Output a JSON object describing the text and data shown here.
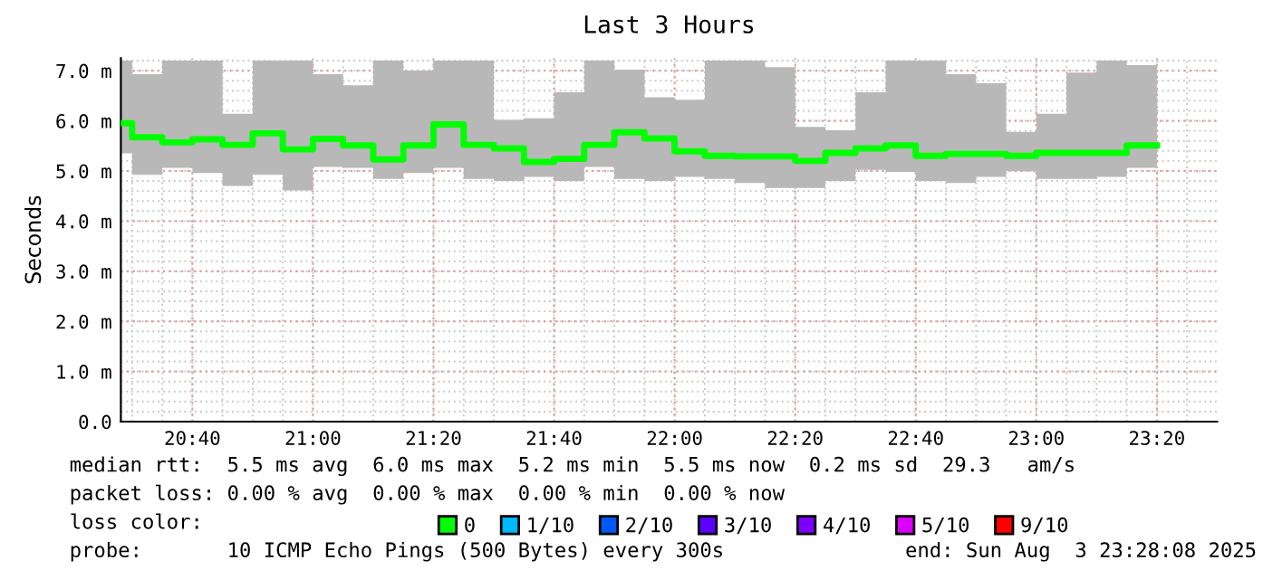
{
  "chart_data": {
    "type": "step",
    "title": "Last 3 Hours",
    "ylabel": "Seconds",
    "x": [
      "2025-08-03T20:30",
      "2025-08-03T20:35",
      "2025-08-03T20:40",
      "2025-08-03T20:45",
      "2025-08-03T20:50",
      "2025-08-03T20:55",
      "2025-08-03T21:00",
      "2025-08-03T21:05",
      "2025-08-03T21:10",
      "2025-08-03T21:15",
      "2025-08-03T21:20",
      "2025-08-03T21:25",
      "2025-08-03T21:30",
      "2025-08-03T21:35",
      "2025-08-03T21:40",
      "2025-08-03T21:45",
      "2025-08-03T21:50",
      "2025-08-03T21:55",
      "2025-08-03T22:00",
      "2025-08-03T22:05",
      "2025-08-03T22:10",
      "2025-08-03T22:15",
      "2025-08-03T22:20",
      "2025-08-03T22:25",
      "2025-08-03T22:30",
      "2025-08-03T22:35",
      "2025-08-03T22:40",
      "2025-08-03T22:45",
      "2025-08-03T22:50",
      "2025-08-03T22:55",
      "2025-08-03T23:00",
      "2025-08-03T23:05",
      "2025-08-03T23:10",
      "2025-08-03T23:15",
      "2025-08-03T23:20"
    ],
    "series": [
      {
        "name": "0",
        "color": "#00ff00",
        "values": [
          5.95,
          5.67,
          5.57,
          5.63,
          5.52,
          5.75,
          5.43,
          5.64,
          5.51,
          5.23,
          5.51,
          5.93,
          5.52,
          5.45,
          5.18,
          5.24,
          5.52,
          5.77,
          5.65,
          5.39,
          5.3,
          5.29,
          5.29,
          5.2,
          5.36,
          5.45,
          5.51,
          5.3,
          5.34,
          5.34,
          5.3,
          5.36,
          5.36,
          5.36,
          5.51
        ],
        "lower": [
          5.35,
          4.92,
          5.06,
          4.96,
          4.7,
          4.92,
          4.61,
          5.08,
          5.06,
          4.84,
          4.96,
          5.06,
          4.84,
          4.8,
          4.88,
          4.8,
          5.08,
          4.84,
          4.8,
          4.88,
          4.84,
          4.76,
          4.66,
          4.66,
          4.8,
          5.02,
          4.98,
          4.8,
          4.76,
          4.88,
          5.0,
          4.84,
          4.84,
          4.88,
          5.06
        ],
        "upper": [
          7.2,
          6.93,
          7.2,
          7.2,
          6.14,
          7.2,
          7.2,
          6.93,
          6.71,
          7.2,
          7.0,
          7.2,
          7.2,
          6.02,
          6.05,
          6.57,
          7.2,
          7.02,
          6.47,
          6.42,
          7.2,
          7.2,
          7.07,
          5.88,
          5.81,
          6.57,
          7.2,
          7.2,
          6.93,
          6.75,
          5.78,
          6.14,
          6.96,
          7.2,
          7.11
        ]
      },
      {
        "name": "1/10",
        "color": "#00b8ff",
        "values": [
          null,
          null,
          null,
          null,
          null,
          null,
          null,
          null,
          null,
          null,
          null,
          null,
          null,
          null,
          null,
          null,
          null,
          null,
          null,
          null,
          null,
          null,
          null,
          null,
          null,
          null,
          null,
          null,
          null,
          null,
          null,
          null,
          null,
          null,
          null
        ]
      },
      {
        "name": "2/10",
        "color": "#0059ff",
        "values": [
          null,
          null,
          null,
          null,
          null,
          null,
          null,
          null,
          null,
          null,
          null,
          null,
          null,
          null,
          null,
          null,
          null,
          null,
          null,
          null,
          null,
          null,
          null,
          null,
          null,
          null,
          null,
          null,
          null,
          null,
          null,
          null,
          null,
          null,
          null
        ]
      },
      {
        "name": "3/10",
        "color": "#5e00ff",
        "values": [
          null,
          null,
          null,
          null,
          null,
          null,
          null,
          null,
          null,
          null,
          null,
          null,
          null,
          null,
          null,
          null,
          null,
          null,
          null,
          null,
          null,
          null,
          null,
          null,
          null,
          null,
          null,
          null,
          null,
          null,
          null,
          null,
          null,
          null,
          null
        ]
      },
      {
        "name": "4/10",
        "color": "#7e00ff",
        "values": [
          null,
          null,
          null,
          null,
          null,
          null,
          null,
          null,
          null,
          null,
          null,
          null,
          null,
          null,
          null,
          null,
          null,
          null,
          null,
          null,
          null,
          null,
          null,
          null,
          null,
          null,
          null,
          null,
          null,
          null,
          null,
          null,
          null,
          null,
          null
        ]
      },
      {
        "name": "5/10",
        "color": "#dd00ff",
        "values": [
          null,
          null,
          null,
          null,
          null,
          null,
          null,
          null,
          null,
          null,
          null,
          null,
          null,
          null,
          null,
          null,
          null,
          null,
          null,
          null,
          null,
          null,
          null,
          null,
          null,
          null,
          null,
          null,
          null,
          null,
          null,
          null,
          null,
          null,
          null
        ]
      },
      {
        "name": "9/10",
        "color": "#ff0000",
        "values": [
          null,
          null,
          null,
          null,
          null,
          null,
          null,
          null,
          null,
          null,
          null,
          null,
          null,
          null,
          null,
          null,
          null,
          null,
          null,
          null,
          null,
          null,
          null,
          null,
          null,
          null,
          null,
          null,
          null,
          null,
          null,
          null,
          null,
          null,
          null
        ]
      }
    ],
    "xlim": [
      "2025-08-03T20:28:08",
      "2025-08-03T23:30"
    ],
    "xticks": [
      {
        "value": "2025-08-03T20:40",
        "label": "20:40"
      },
      {
        "value": "2025-08-03T21:00",
        "label": "21:00"
      },
      {
        "value": "2025-08-03T21:20",
        "label": "21:20"
      },
      {
        "value": "2025-08-03T21:40",
        "label": "21:40"
      },
      {
        "value": "2025-08-03T22:00",
        "label": "22:00"
      },
      {
        "value": "2025-08-03T22:20",
        "label": "22:20"
      },
      {
        "value": "2025-08-03T22:40",
        "label": "22:40"
      },
      {
        "value": "2025-08-03T23:00",
        "label": "23:00"
      },
      {
        "value": "2025-08-03T23:20",
        "label": "23:20"
      }
    ],
    "ylim": [
      0,
      7.25
    ],
    "yticks": [
      {
        "value": 0,
        "label": "0.0"
      },
      {
        "value": 1,
        "label": "1.0 m"
      },
      {
        "value": 2,
        "label": "2.0 m"
      },
      {
        "value": 3,
        "label": "3.0 m"
      },
      {
        "value": 4,
        "label": "4.0 m"
      },
      {
        "value": 5,
        "label": "5.0 m"
      },
      {
        "value": 6,
        "label": "6.0 m"
      },
      {
        "value": 7,
        "label": "7.0 m"
      }
    ],
    "grid": true,
    "legend": "bottom",
    "legend_title": "loss color:",
    "annotations": [
      "median rtt:  5.5 ms avg  6.0 ms max  5.2 ms min  5.5 ms now  0.2 ms sd  29.3   am/s",
      "packet loss: 0.00 % avg  0.00 % max  0.00 % min  0.00 % now",
      "probe:       10 ICMP Echo Pings (500 Bytes) every 300s",
      "end: Sun Aug  3 23:28:08 2025"
    ]
  }
}
